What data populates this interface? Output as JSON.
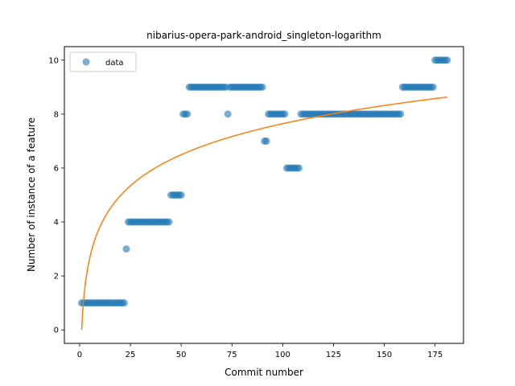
{
  "chart_data": {
    "type": "scatter",
    "title": "nibarius-opera-park-android_singleton-logarithm",
    "xlabel": "Commit number",
    "ylabel": "Number of instance of a feature",
    "xlim": [
      -7.5,
      189
    ],
    "ylim": [
      -0.5,
      10.5
    ],
    "xticks": [
      0,
      25,
      50,
      75,
      100,
      125,
      150,
      175
    ],
    "yticks": [
      0,
      2,
      4,
      6,
      8,
      10
    ],
    "grid": false,
    "legend": {
      "position": "top-left",
      "entries": [
        "data"
      ]
    },
    "colors": {
      "data": "#1f77b4",
      "fit": "#ff7f0e"
    },
    "series": [
      {
        "name": "data",
        "kind": "scatter",
        "segments": [
          {
            "x_from": 1,
            "x_to": 22,
            "y": 1
          },
          {
            "x_from": 23,
            "x_to": 23,
            "y": 3
          },
          {
            "x_from": 24,
            "x_to": 44,
            "y": 4
          },
          {
            "x_from": 45,
            "x_to": 50,
            "y": 5
          },
          {
            "x_from": 51,
            "x_to": 53,
            "y": 8
          },
          {
            "x_from": 54,
            "x_to": 72,
            "y": 9
          },
          {
            "x_from": 73,
            "x_to": 73,
            "y": 8
          },
          {
            "x_from": 74,
            "x_to": 90,
            "y": 9
          },
          {
            "x_from": 91,
            "x_to": 92,
            "y": 7
          },
          {
            "x_from": 93,
            "x_to": 101,
            "y": 8
          },
          {
            "x_from": 102,
            "x_to": 108,
            "y": 6
          },
          {
            "x_from": 109,
            "x_to": 158,
            "y": 8
          },
          {
            "x_from": 159,
            "x_to": 174,
            "y": 9
          },
          {
            "x_from": 175,
            "x_to": 181,
            "y": 10
          }
        ]
      },
      {
        "kind": "line",
        "function": "a*ln(x)",
        "a": 1.66,
        "x_range": [
          1,
          181
        ]
      }
    ]
  }
}
